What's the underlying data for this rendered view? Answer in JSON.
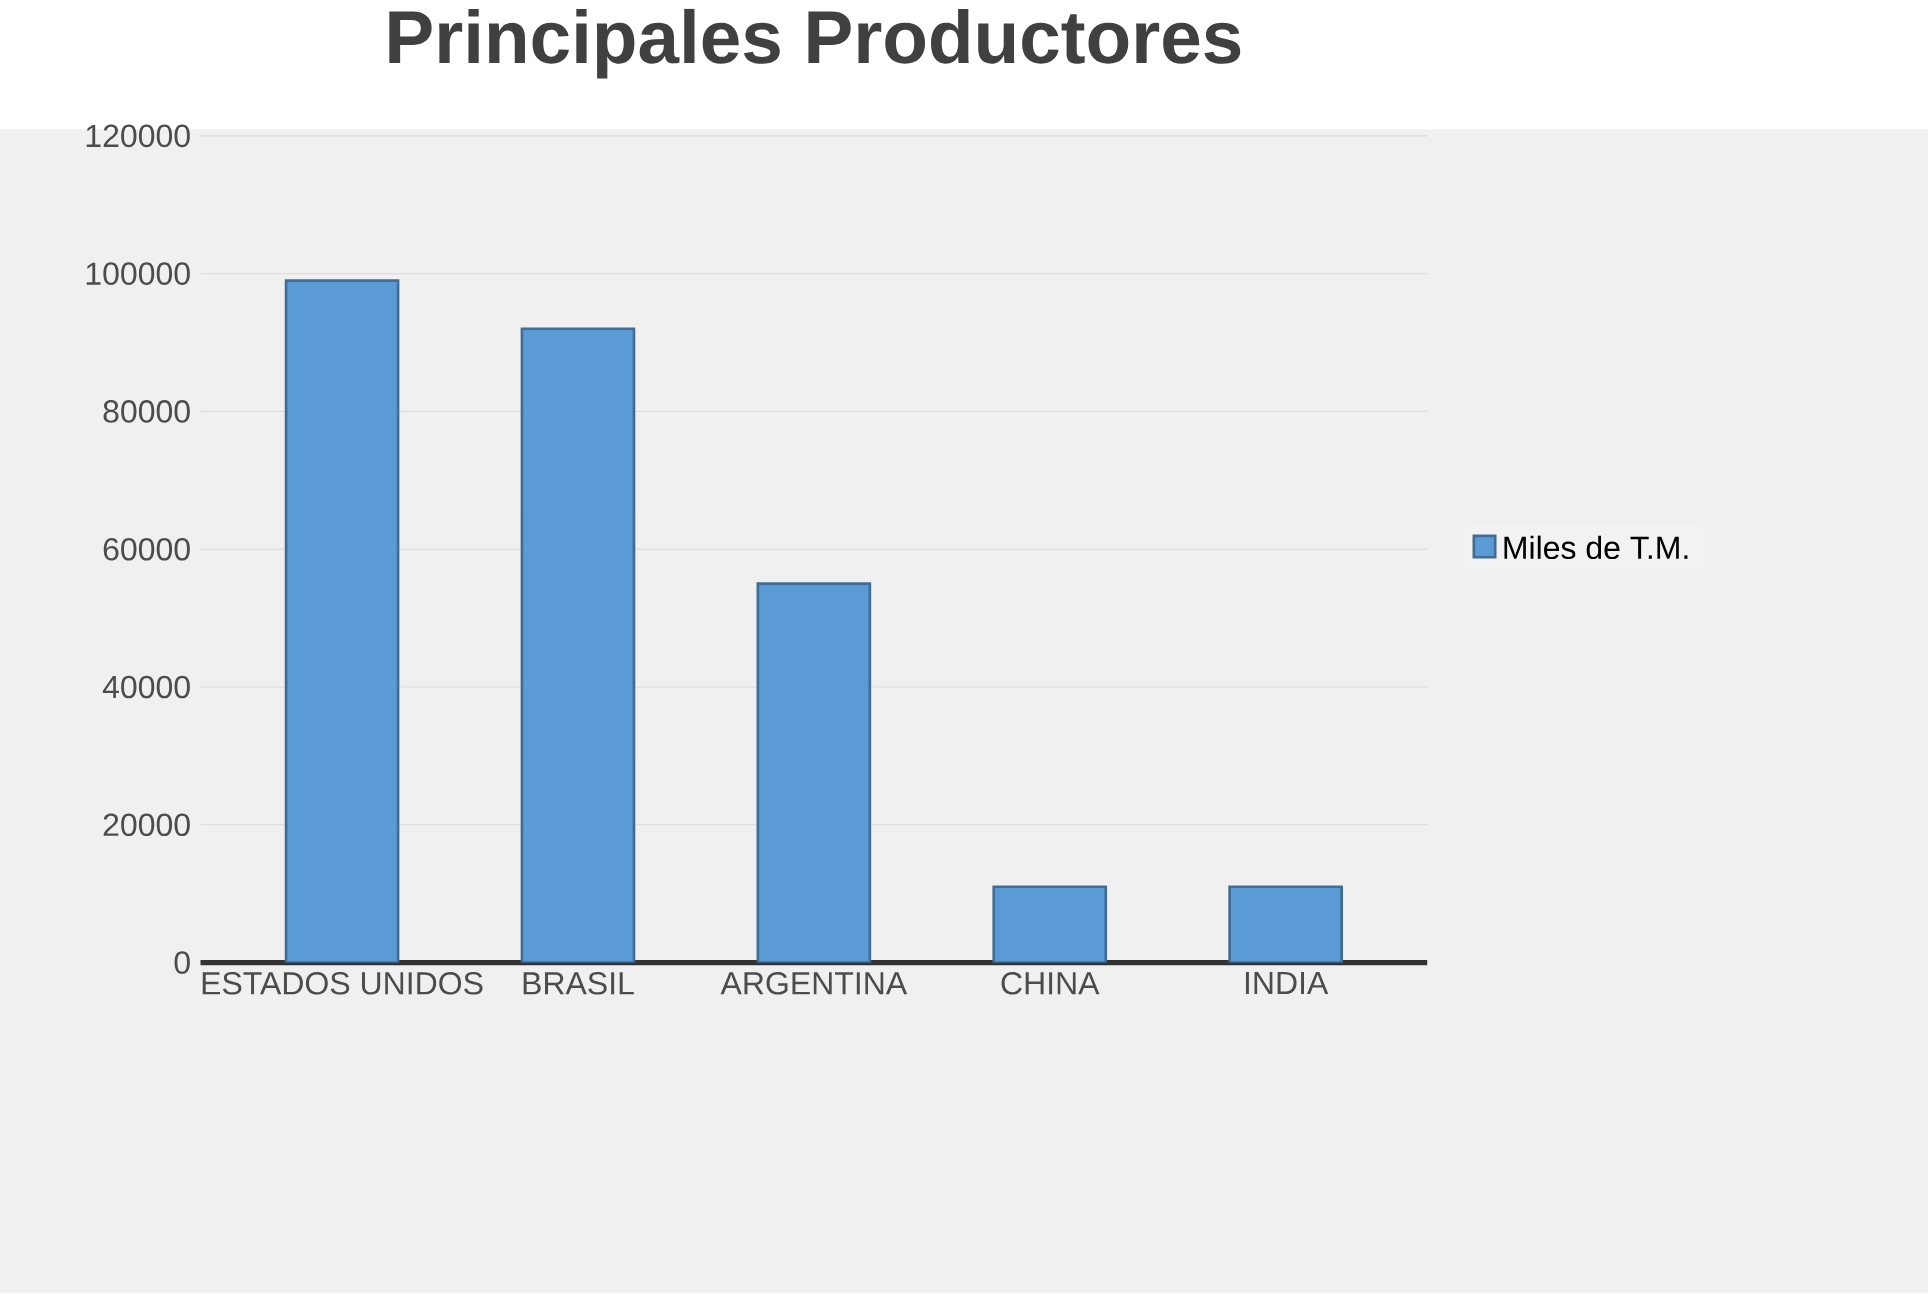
{
  "chart_data": {
    "type": "bar",
    "title": "Principales Productores",
    "categories": [
      "ESTADOS UNIDOS",
      "BRASIL",
      "ARGENTINA",
      "CHINA",
      "INDIA"
    ],
    "series": [
      {
        "name": "Miles de T.M.",
        "color": "#5b9bd5",
        "values": [
          99000,
          92000,
          55000,
          11000,
          11000
        ]
      }
    ],
    "ylim": [
      0,
      120000
    ],
    "yticks": [
      0,
      20000,
      40000,
      60000,
      80000,
      100000,
      120000
    ],
    "grid": "y",
    "legend": "right"
  }
}
